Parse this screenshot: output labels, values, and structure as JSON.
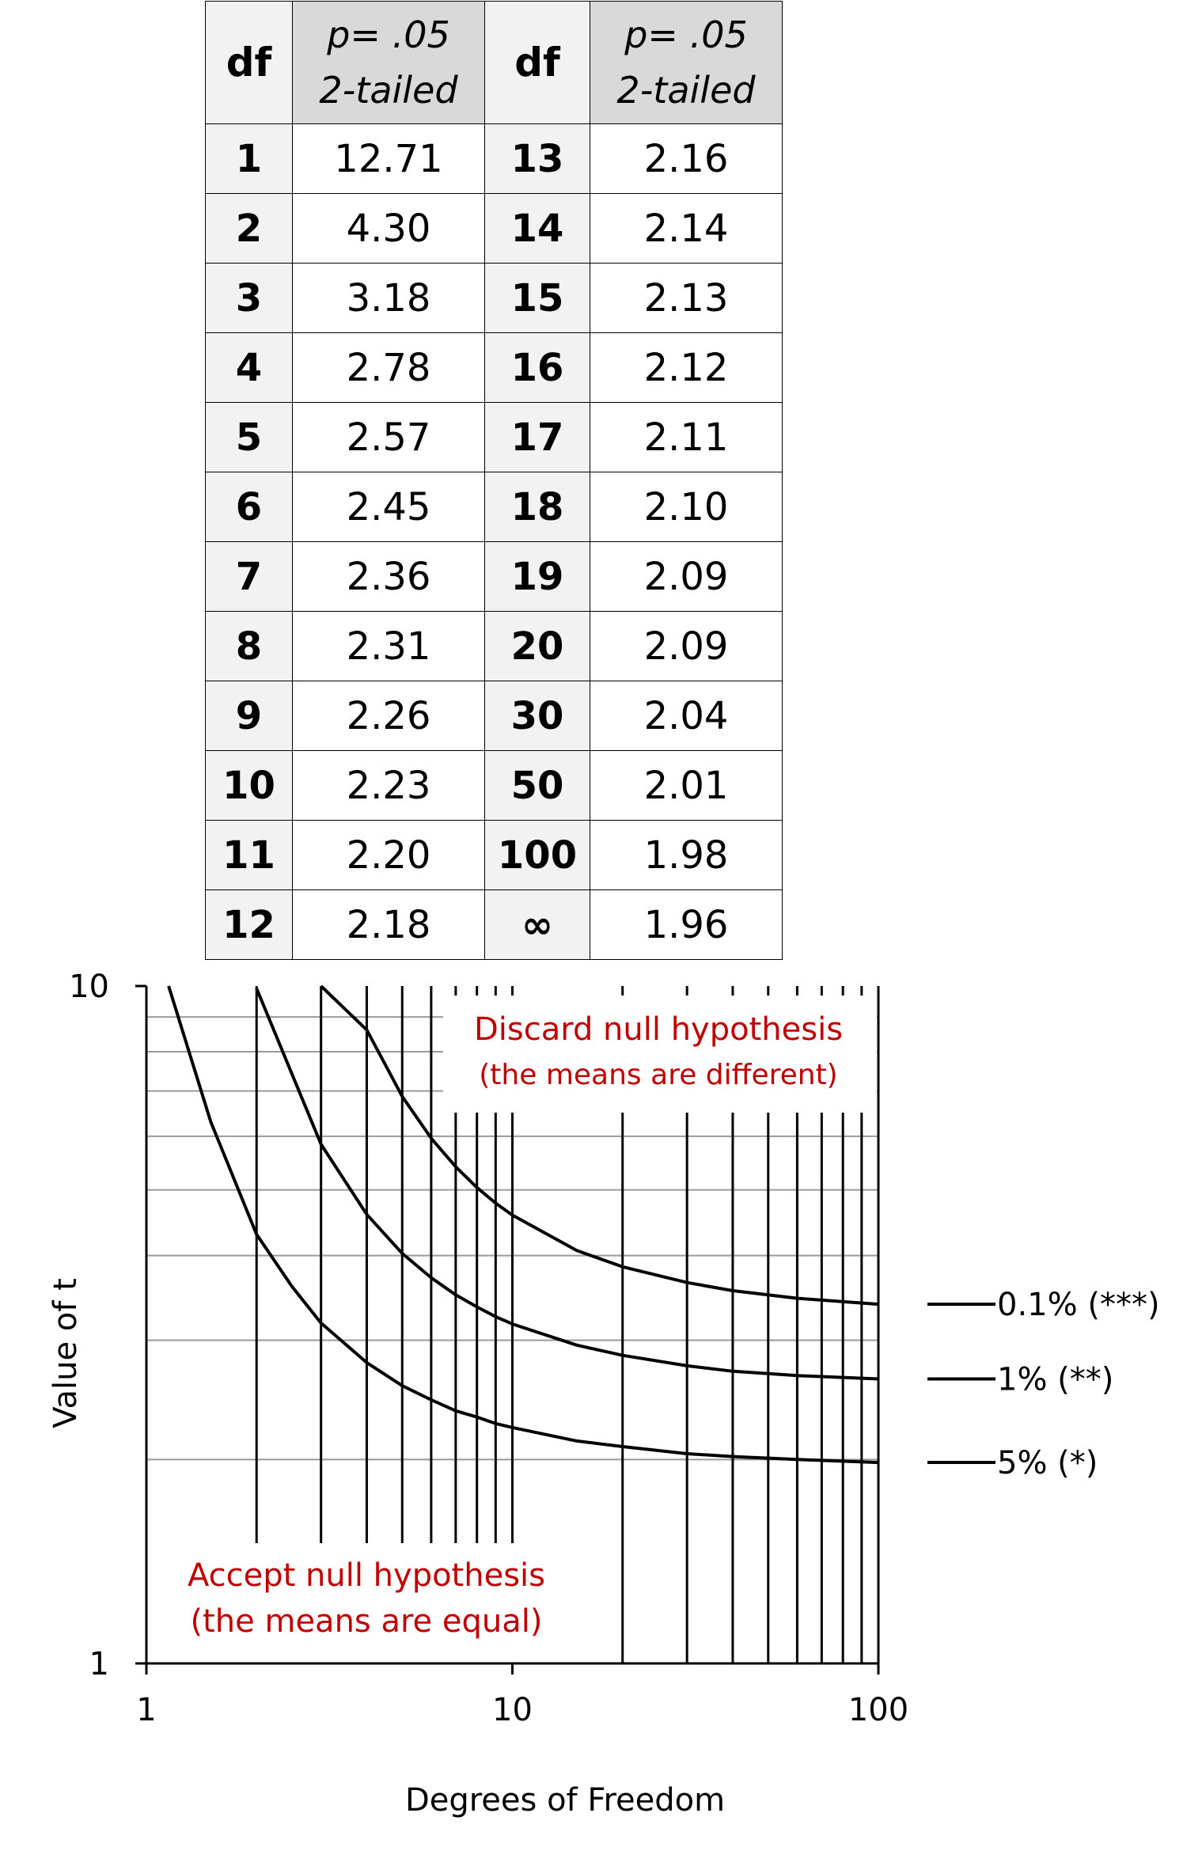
{
  "table": {
    "headers": [
      {
        "label": "df"
      },
      {
        "label_line1": "p= .05",
        "label_line2": "2-tailed"
      },
      {
        "label": "df"
      },
      {
        "label_line1": "p= .05",
        "label_line2": "2-tailed"
      }
    ],
    "rows": [
      {
        "df1": "1",
        "v1": "12.71",
        "df2": "13",
        "v2": "2.16"
      },
      {
        "df1": "2",
        "v1": "4.30",
        "df2": "14",
        "v2": "2.14"
      },
      {
        "df1": "3",
        "v1": "3.18",
        "df2": "15",
        "v2": "2.13"
      },
      {
        "df1": "4",
        "v1": "2.78",
        "df2": "16",
        "v2": "2.12"
      },
      {
        "df1": "5",
        "v1": "2.57",
        "df2": "17",
        "v2": "2.11"
      },
      {
        "df1": "6",
        "v1": "2.45",
        "df2": "18",
        "v2": "2.10"
      },
      {
        "df1": "7",
        "v1": "2.36",
        "df2": "19",
        "v2": "2.09"
      },
      {
        "df1": "8",
        "v1": "2.31",
        "df2": "20",
        "v2": "2.09"
      },
      {
        "df1": "9",
        "v1": "2.26",
        "df2": "30",
        "v2": "2.04"
      },
      {
        "df1": "10",
        "v1": "2.23",
        "df2": "50",
        "v2": "2.01"
      },
      {
        "df1": "11",
        "v1": "2.20",
        "df2": "100",
        "v2": "1.98"
      },
      {
        "df1": "12",
        "v1": "2.18",
        "df2": "∞",
        "v2": "1.96"
      }
    ]
  },
  "chart_data": {
    "type": "line",
    "xlabel": "Degrees of Freedom",
    "ylabel": "Value of t",
    "xscale": "log",
    "yscale": "log",
    "xlim": [
      1,
      100
    ],
    "ylim": [
      1,
      10
    ],
    "x_ticks": [
      "1",
      "10",
      "100"
    ],
    "y_ticks": [
      "1",
      "10"
    ],
    "grid": true,
    "legend_position": "right",
    "series": [
      {
        "name": "0.1% (***)",
        "x": [
          3,
          4,
          5,
          6,
          7,
          8,
          9,
          10,
          15,
          20,
          30,
          40,
          60,
          100
        ],
        "y": [
          12.92,
          8.61,
          6.87,
          5.96,
          5.41,
          5.04,
          4.78,
          4.59,
          4.07,
          3.85,
          3.65,
          3.55,
          3.46,
          3.39
        ]
      },
      {
        "name": "1% (**)",
        "x": [
          2,
          3,
          4,
          5,
          6,
          7,
          8,
          9,
          10,
          15,
          20,
          30,
          40,
          60,
          100
        ],
        "y": [
          9.92,
          5.84,
          4.6,
          4.03,
          3.71,
          3.5,
          3.36,
          3.25,
          3.17,
          2.95,
          2.85,
          2.75,
          2.7,
          2.66,
          2.63
        ]
      },
      {
        "name": "5% (*)",
        "x": [
          1.15,
          1.5,
          2,
          2.5,
          3,
          4,
          5,
          6,
          7,
          8,
          9,
          10,
          15,
          20,
          30,
          40,
          60,
          100
        ],
        "y": [
          10.0,
          6.3,
          4.3,
          3.6,
          3.18,
          2.78,
          2.57,
          2.45,
          2.36,
          2.31,
          2.26,
          2.23,
          2.13,
          2.09,
          2.04,
          2.02,
          2.0,
          1.98
        ]
      }
    ],
    "annotations": [
      {
        "line1": "Discard null hypothesis",
        "line2": "(the means are different)",
        "color": "#c00000"
      },
      {
        "line1": "Accept null hypothesis",
        "line2": "(the means are equal)",
        "color": "#c00000"
      }
    ]
  }
}
